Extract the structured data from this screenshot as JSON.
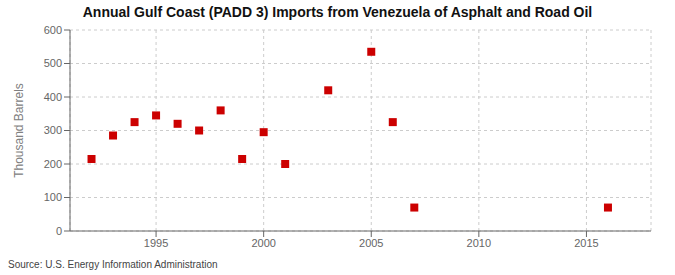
{
  "chart_data": {
    "type": "scatter",
    "title": "Annual Gulf Coast (PADD 3) Imports from Venezuela of Asphalt and Road Oil",
    "ylabel": "Thousand Barrels",
    "annotations": [
      "Source: U.S. Energy Information Administration"
    ],
    "x": [
      1992,
      1993,
      1994,
      1995,
      1996,
      1997,
      1998,
      1999,
      2000,
      2001,
      2003,
      2005,
      2006,
      2007,
      2016
    ],
    "values": [
      215,
      285,
      325,
      345,
      320,
      300,
      360,
      215,
      295,
      200,
      420,
      535,
      325,
      70,
      70
    ],
    "color": "#cc0000",
    "marker": "square",
    "xlim": [
      1991,
      2018
    ],
    "ylim": [
      0,
      600
    ],
    "xticks": [
      1995,
      2000,
      2005,
      2010,
      2015
    ],
    "yticks": [
      0,
      100,
      200,
      300,
      400,
      500,
      600
    ],
    "grid": true
  }
}
